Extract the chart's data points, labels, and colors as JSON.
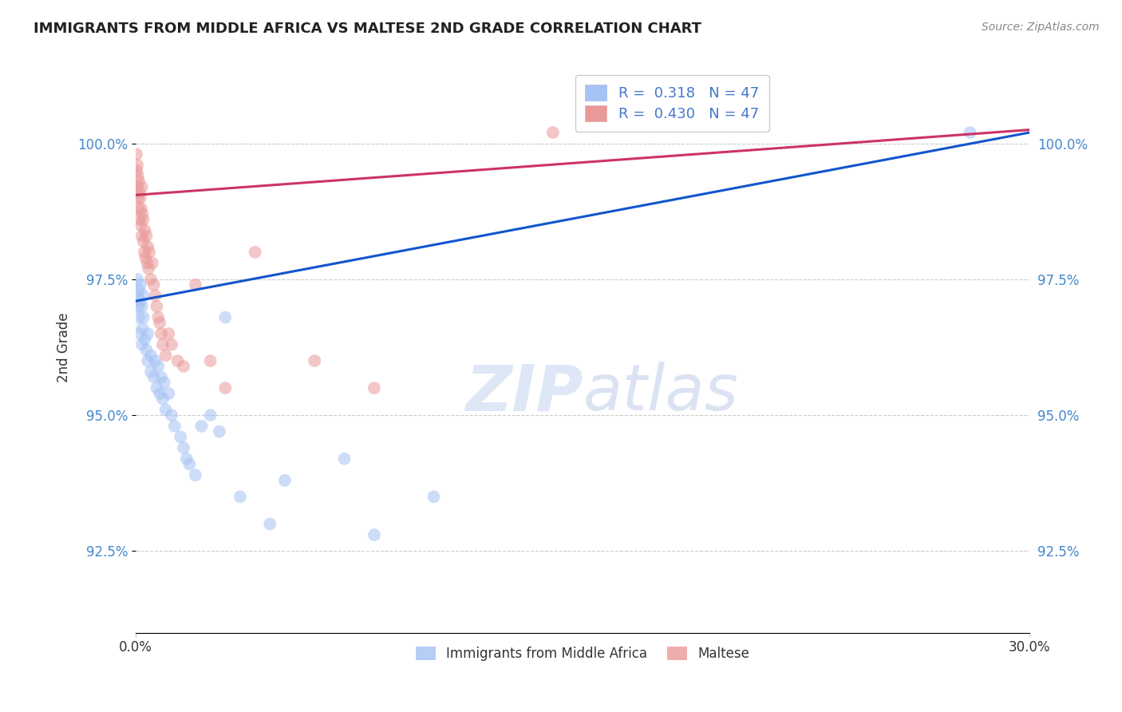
{
  "title": "IMMIGRANTS FROM MIDDLE AFRICA VS MALTESE 2ND GRADE CORRELATION CHART",
  "source": "Source: ZipAtlas.com",
  "ylabel": "2nd Grade",
  "xlim": [
    0.0,
    30.0
  ],
  "ylim": [
    91.0,
    101.5
  ],
  "yticks": [
    92.5,
    95.0,
    97.5,
    100.0
  ],
  "ytick_labels": [
    "92.5%",
    "95.0%",
    "97.5%",
    "100.0%"
  ],
  "blue_color": "#a4c2f4",
  "pink_color": "#ea9999",
  "blue_line_color": "#1155cc",
  "pink_line_color": "#cc3366",
  "R_blue": 0.318,
  "R_pink": 0.43,
  "N": 47,
  "blue_scatter_x": [
    0.05,
    0.05,
    0.08,
    0.1,
    0.1,
    0.12,
    0.15,
    0.15,
    0.2,
    0.2,
    0.22,
    0.25,
    0.25,
    0.3,
    0.35,
    0.4,
    0.4,
    0.5,
    0.5,
    0.6,
    0.65,
    0.7,
    0.75,
    0.8,
    0.85,
    0.9,
    0.95,
    1.0,
    1.1,
    1.2,
    1.3,
    1.5,
    1.6,
    1.7,
    1.8,
    2.0,
    2.2,
    2.5,
    2.8,
    3.0,
    3.5,
    4.5,
    5.0,
    7.0,
    8.0,
    10.0,
    28.0
  ],
  "blue_scatter_y": [
    97.5,
    97.2,
    97.0,
    96.8,
    97.3,
    96.5,
    97.1,
    97.4,
    96.3,
    97.0,
    96.6,
    96.8,
    97.2,
    96.4,
    96.2,
    96.0,
    96.5,
    95.8,
    96.1,
    95.7,
    96.0,
    95.5,
    95.9,
    95.4,
    95.7,
    95.3,
    95.6,
    95.1,
    95.4,
    95.0,
    94.8,
    94.6,
    94.4,
    94.2,
    94.1,
    93.9,
    94.8,
    95.0,
    94.7,
    96.8,
    93.5,
    93.0,
    93.8,
    94.2,
    92.8,
    93.5,
    100.2
  ],
  "pink_scatter_x": [
    0.02,
    0.03,
    0.05,
    0.05,
    0.07,
    0.08,
    0.1,
    0.1,
    0.12,
    0.12,
    0.15,
    0.15,
    0.18,
    0.2,
    0.2,
    0.22,
    0.25,
    0.25,
    0.28,
    0.3,
    0.32,
    0.35,
    0.38,
    0.4,
    0.42,
    0.45,
    0.5,
    0.55,
    0.6,
    0.65,
    0.7,
    0.75,
    0.8,
    0.85,
    0.9,
    1.0,
    1.1,
    1.2,
    1.4,
    1.6,
    2.0,
    2.5,
    3.0,
    4.0,
    6.0,
    8.0,
    14.0
  ],
  "pink_scatter_y": [
    99.8,
    99.5,
    99.6,
    99.2,
    99.4,
    99.0,
    99.3,
    98.8,
    99.1,
    98.6,
    99.0,
    98.5,
    98.8,
    99.2,
    98.3,
    98.7,
    98.2,
    98.6,
    98.0,
    98.4,
    97.9,
    98.3,
    97.8,
    98.1,
    97.7,
    98.0,
    97.5,
    97.8,
    97.4,
    97.2,
    97.0,
    96.8,
    96.7,
    96.5,
    96.3,
    96.1,
    96.5,
    96.3,
    96.0,
    95.9,
    97.4,
    96.0,
    95.5,
    98.0,
    96.0,
    95.5,
    100.2
  ]
}
